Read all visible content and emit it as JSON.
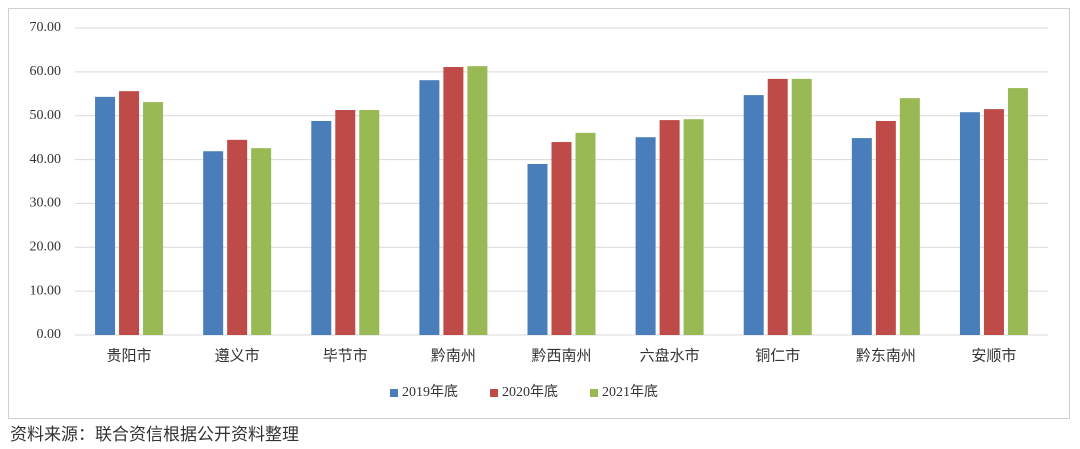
{
  "chart_data": {
    "type": "bar",
    "categories": [
      "贵阳市",
      "遵义市",
      "毕节市",
      "黔南州",
      "黔西南州",
      "六盘水市",
      "铜仁市",
      "黔东南州",
      "安顺市"
    ],
    "series": [
      {
        "name": "2019年底",
        "color": "#4a7ebb",
        "values": [
          54.3,
          41.9,
          48.8,
          58.1,
          39.0,
          45.1,
          54.7,
          44.9,
          50.8
        ]
      },
      {
        "name": "2020年底",
        "color": "#be4b48",
        "values": [
          55.6,
          44.5,
          51.3,
          61.1,
          44.0,
          49.0,
          58.4,
          48.8,
          51.5
        ]
      },
      {
        "name": "2021年底",
        "color": "#98b954",
        "values": [
          53.1,
          42.6,
          51.3,
          61.3,
          46.1,
          49.2,
          58.4,
          54.0,
          56.3
        ]
      }
    ],
    "ylim": [
      0,
      70
    ],
    "yticks": [
      {
        "value": 0,
        "label": "0.00"
      },
      {
        "value": 10,
        "label": "10.00"
      },
      {
        "value": 20,
        "label": "20.00"
      },
      {
        "value": 30,
        "label": "30.00"
      },
      {
        "value": 40,
        "label": "40.00"
      },
      {
        "value": 50,
        "label": "50.00"
      },
      {
        "value": 60,
        "label": "60.00"
      },
      {
        "value": 70,
        "label": "70.00"
      }
    ],
    "grid": true,
    "legend": "bottom"
  },
  "source": "资料来源：联合资信根据公开资料整理"
}
